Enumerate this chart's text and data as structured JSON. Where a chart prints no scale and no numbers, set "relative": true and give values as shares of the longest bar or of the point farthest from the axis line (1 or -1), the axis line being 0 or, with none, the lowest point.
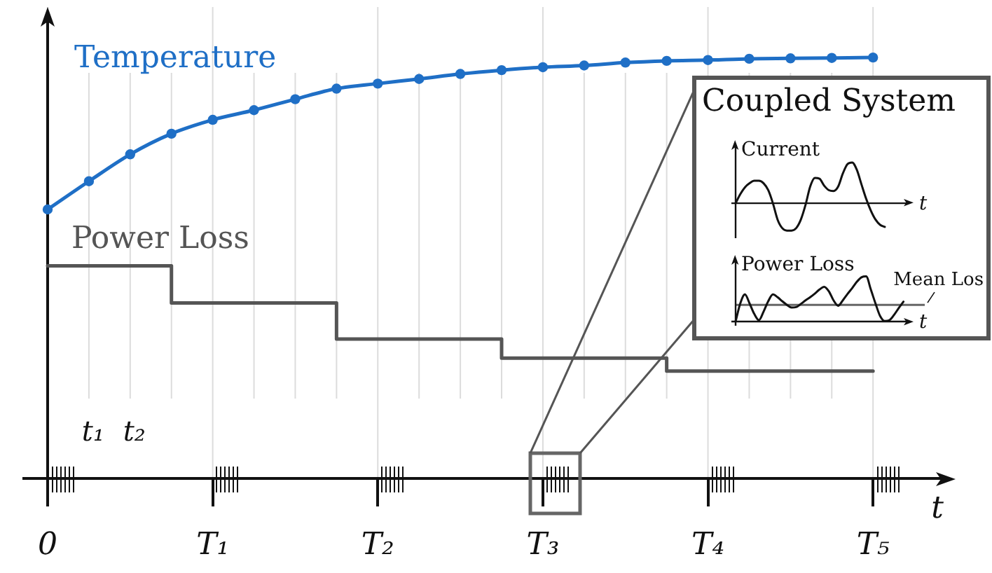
{
  "chart_data": [
    {
      "type": "line",
      "relative": true,
      "xlabel": "t",
      "categories": [
        "0",
        "t₁",
        "t₂",
        null,
        "T₁",
        null,
        null,
        null,
        "T₂",
        null,
        null,
        null,
        "T₃",
        null,
        null,
        null,
        "T₄",
        null,
        null,
        null,
        "T₅"
      ],
      "grid": "x",
      "series": [
        {
          "name": "Temperature",
          "color": "#1f6fc6",
          "marker": "circle",
          "values": [
            0.639,
            0.706,
            0.77,
            0.819,
            0.852,
            0.875,
            0.901,
            0.926,
            0.938,
            0.949,
            0.961,
            0.97,
            0.977,
            0.981,
            0.988,
            0.992,
            0.994,
            0.997,
            0.998,
            0.999,
            1
          ]
        },
        {
          "name": "Power Loss",
          "type": "step",
          "color": "#555555",
          "values": [
            0.505,
            0.505,
            0.505,
            0.505,
            0.417,
            0.417,
            0.417,
            0.417,
            0.331,
            0.331,
            0.331,
            0.331,
            0.286,
            0.286,
            0.286,
            0.286,
            0.255,
            0.255,
            0.255,
            0.255,
            0.255
          ]
        }
      ]
    },
    {
      "type": "line",
      "relative": true,
      "title": "Coupled System",
      "ylabel": "Current",
      "xlabel": "t",
      "categories": [
        null,
        null,
        null,
        null,
        null,
        null,
        null,
        null,
        null,
        null,
        null,
        null,
        null,
        null,
        null,
        null,
        null,
        null,
        null,
        null,
        null,
        null,
        null,
        null,
        null,
        null,
        null,
        null,
        null,
        null,
        null,
        null,
        null
      ],
      "color": "#111111",
      "values": [
        0,
        0.22,
        0.39,
        0.49,
        0.55,
        0.55,
        0.49,
        0.32,
        0,
        -0.4,
        -0.61,
        -0.67,
        -0.67,
        -0.61,
        -0.4,
        -0.04,
        0.41,
        0.62,
        0.6,
        0.43,
        0.32,
        0.3,
        0.41,
        0.73,
        0.96,
        1,
        0.82,
        0.46,
        0.11,
        -0.18,
        -0.4,
        -0.53,
        -0.58
      ]
    },
    {
      "type": "line",
      "relative": true,
      "ylabel": "Power Loss",
      "xlabel": "t",
      "categories": [
        null,
        null,
        null,
        null,
        null,
        null,
        null,
        null,
        null,
        null,
        null,
        null,
        null,
        null,
        null,
        null,
        null,
        null,
        null,
        null,
        null,
        null,
        null,
        null,
        null,
        null,
        null,
        null,
        null,
        null,
        null,
        null,
        null,
        null,
        null,
        null,
        null
      ],
      "color": "#111111",
      "values": [
        0,
        0.4,
        0.6,
        0.4,
        0.17,
        0.03,
        0.22,
        0.45,
        0.6,
        0.54,
        0.45,
        0.37,
        0.31,
        0.32,
        0.39,
        0.47,
        0.54,
        0.62,
        0.71,
        0.77,
        0.67,
        0.47,
        0.35,
        0.47,
        0.61,
        0.74,
        0.88,
        0.98,
        1,
        0.71,
        0.4,
        0.12,
        0.01,
        0.03,
        0.15,
        0.3,
        0.44
      ],
      "ref_lines": [
        {
          "axis": "y",
          "value": 0.37,
          "label": "Mean Los",
          "color": "#666666"
        }
      ]
    }
  ]
}
